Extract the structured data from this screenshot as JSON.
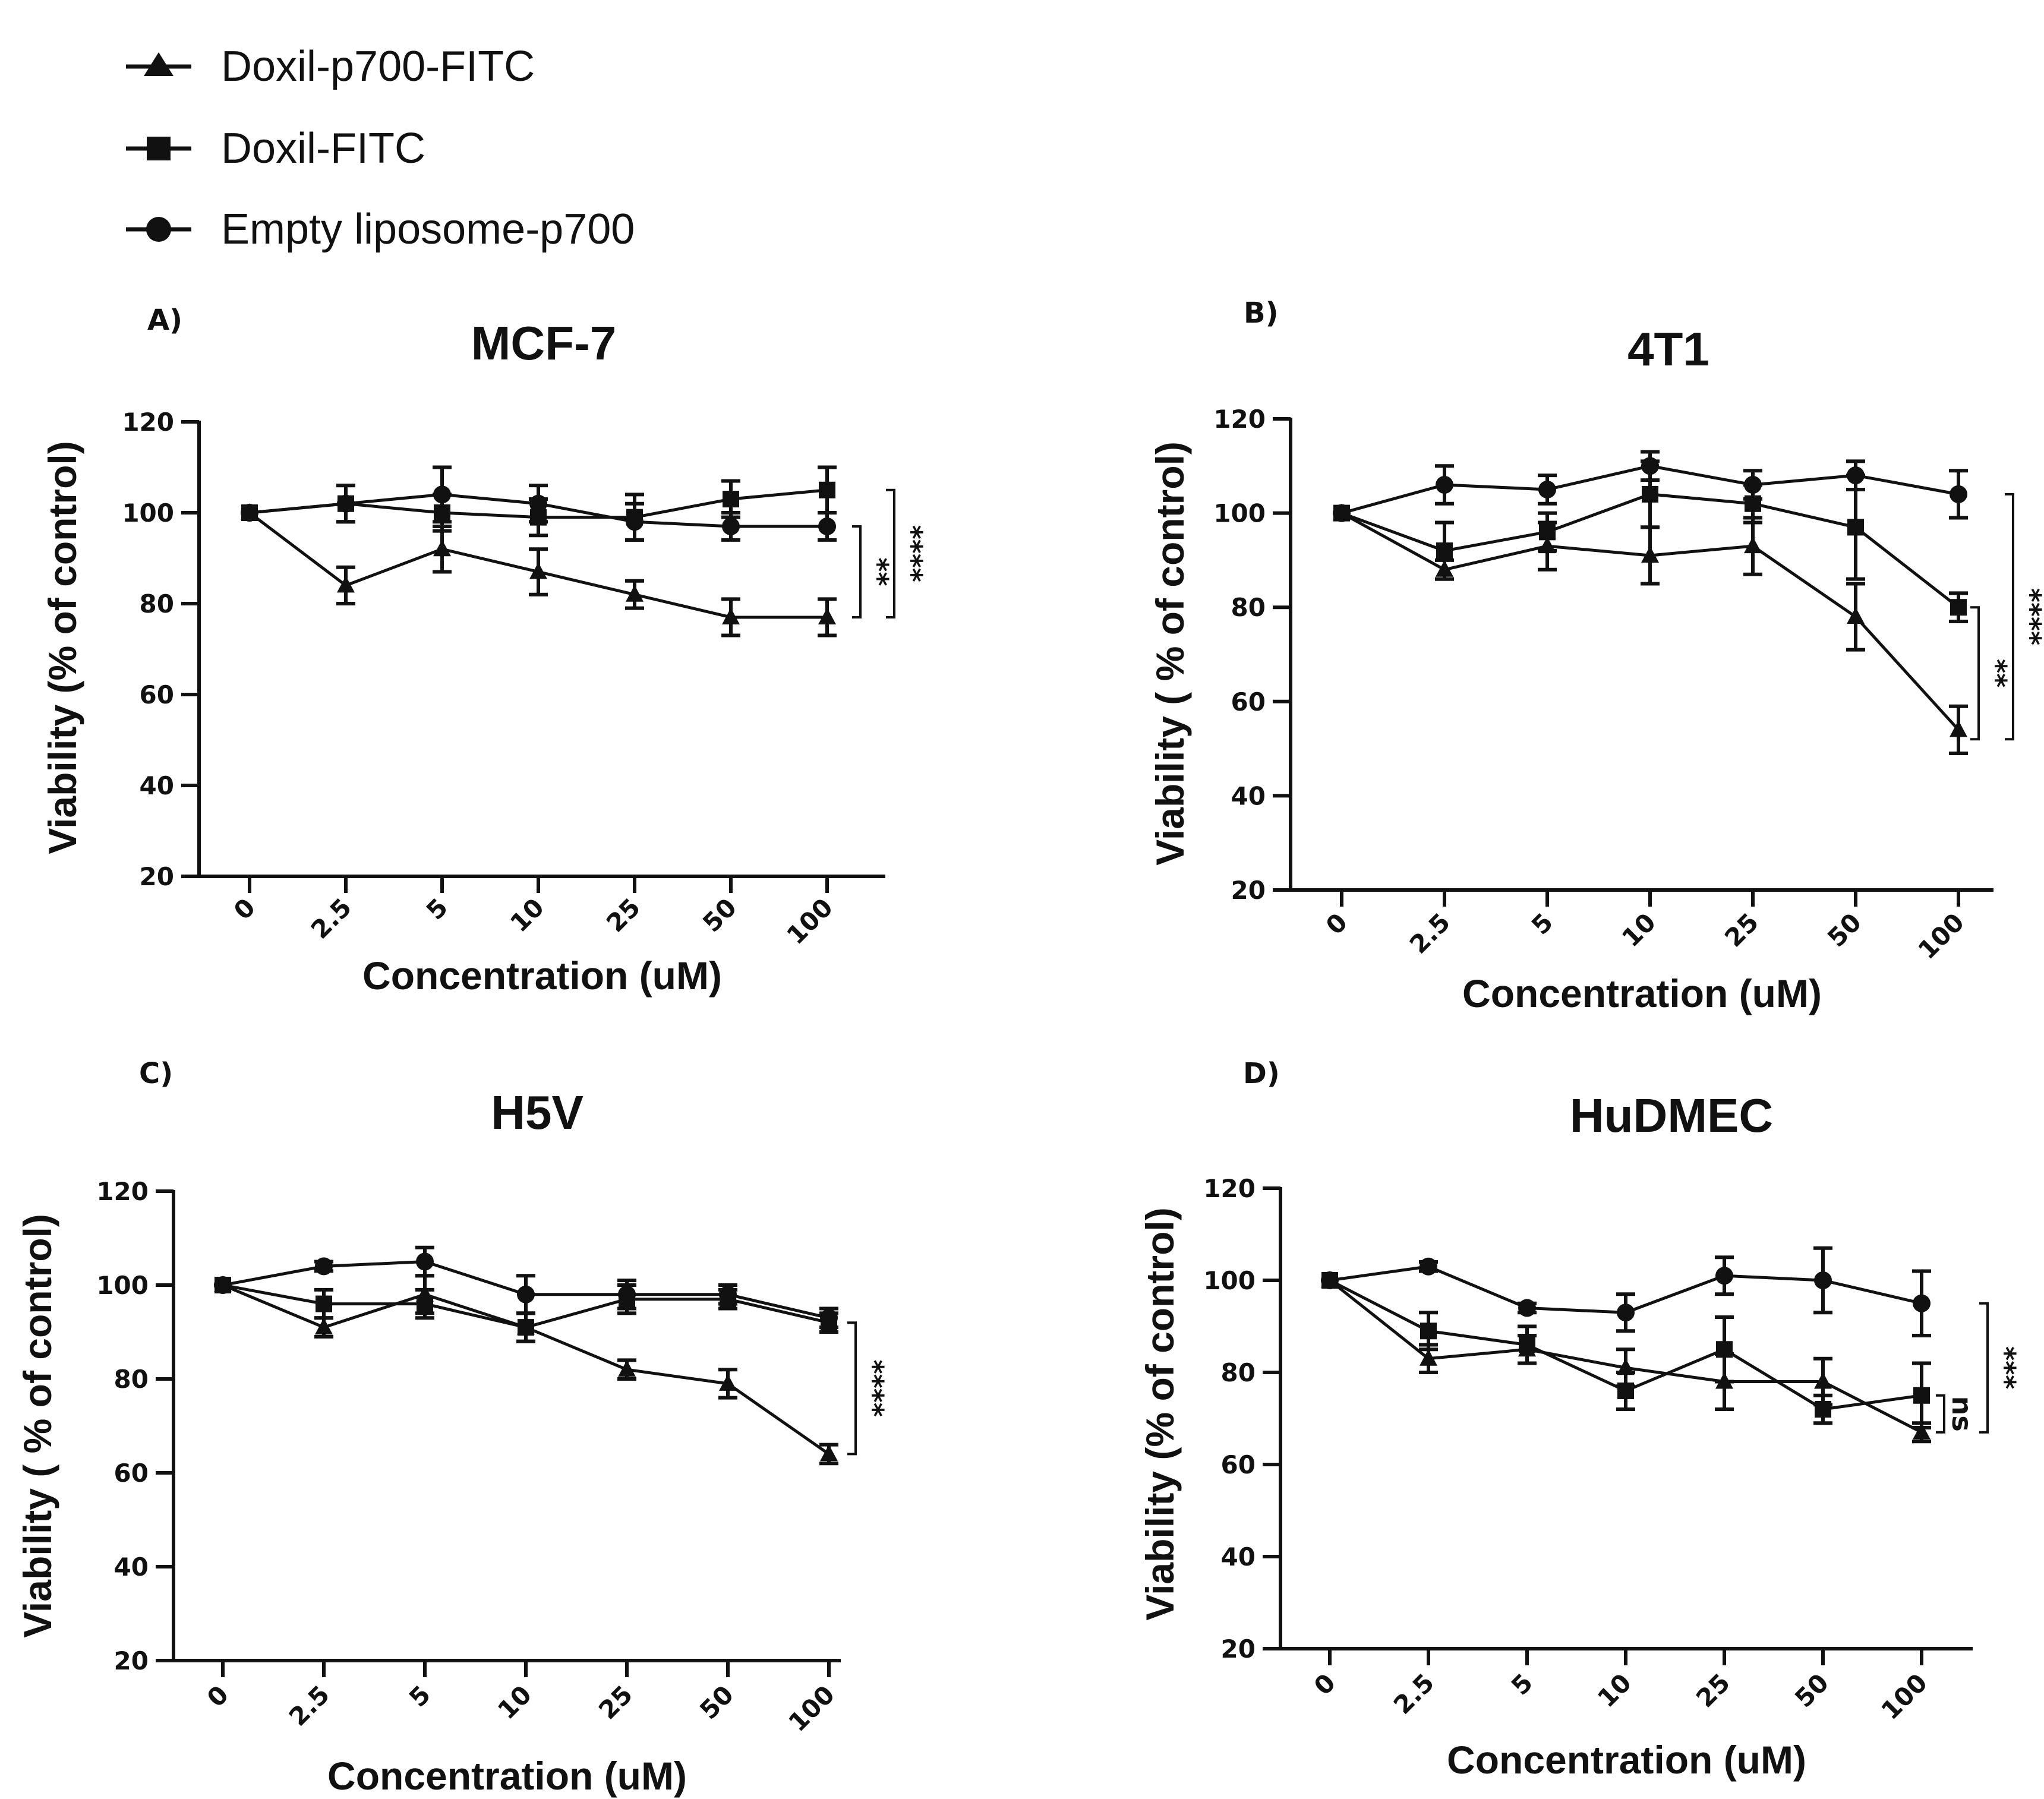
{
  "colors": {
    "ink": "#111111",
    "background": "#ffffff"
  },
  "legend": [
    {
      "label": "Doxil-p700-FITC",
      "marker": "triangle"
    },
    {
      "label": "Doxil-FITC",
      "marker": "square"
    },
    {
      "label": "Empty liposome-p700",
      "marker": "circle"
    }
  ],
  "chart_data": [
    {
      "type": "line",
      "panel_label": "A)",
      "title": "MCF-7",
      "xlabel": "Concentration (uM)",
      "ylabel": "Viability (% of control)",
      "categories": [
        "0",
        "2.5",
        "5",
        "10",
        "25",
        "50",
        "100"
      ],
      "ylim": [
        20,
        120
      ],
      "yticks": [
        20,
        40,
        60,
        80,
        100,
        120
      ],
      "series": [
        {
          "name": "Doxil-p700-FITC",
          "marker": "triangle",
          "values": [
            100,
            84,
            92,
            87,
            82,
            77,
            77
          ],
          "errors": [
            0,
            4,
            5,
            5,
            3,
            4,
            4
          ]
        },
        {
          "name": "Doxil-FITC",
          "marker": "square",
          "values": [
            100,
            102,
            100,
            99,
            99,
            103,
            105
          ],
          "errors": [
            0,
            4,
            4,
            4,
            5,
            4,
            5
          ]
        },
        {
          "name": "Empty liposome-p700",
          "marker": "circle",
          "values": [
            100,
            102,
            104,
            102,
            98,
            97,
            97
          ],
          "errors": [
            0,
            4,
            6,
            4,
            4,
            3,
            3
          ]
        }
      ],
      "significance": [
        {
          "label": "**",
          "from": 97,
          "to": 77
        },
        {
          "label": "****",
          "from": 105,
          "to": 77
        }
      ]
    },
    {
      "type": "line",
      "panel_label": "B)",
      "title": "4T1",
      "xlabel": "Concentration (uM)",
      "ylabel": "Viability ( % of control)",
      "categories": [
        "0",
        "2.5",
        "5",
        "10",
        "25",
        "50",
        "100"
      ],
      "ylim": [
        20,
        120
      ],
      "yticks": [
        20,
        40,
        60,
        80,
        100,
        120
      ],
      "series": [
        {
          "name": "Doxil-p700-FITC",
          "marker": "triangle",
          "values": [
            100,
            88,
            93,
            91,
            93,
            78,
            54
          ],
          "errors": [
            0,
            2,
            5,
            6,
            6,
            7,
            5
          ]
        },
        {
          "name": "Doxil-FITC",
          "marker": "square",
          "values": [
            100,
            92,
            96,
            104,
            102,
            97,
            80
          ],
          "errors": [
            0,
            6,
            4,
            7,
            4,
            11,
            3
          ]
        },
        {
          "name": "Empty liposome-p700",
          "marker": "circle",
          "values": [
            100,
            106,
            105,
            110,
            106,
            108,
            104
          ],
          "errors": [
            0,
            4,
            3,
            3,
            3,
            3,
            5
          ]
        }
      ],
      "significance": [
        {
          "label": "**",
          "from": 80,
          "to": 52
        },
        {
          "label": "****",
          "from": 104,
          "to": 52
        }
      ]
    },
    {
      "type": "line",
      "panel_label": "C)",
      "title": "H5V",
      "xlabel": "Concentration (uM)",
      "ylabel": "Viability ( % of control)",
      "categories": [
        "0",
        "2.5",
        "5",
        "10",
        "25",
        "50",
        "100"
      ],
      "ylim": [
        20,
        120
      ],
      "yticks": [
        20,
        40,
        60,
        80,
        100,
        120
      ],
      "series": [
        {
          "name": "Doxil-p700-FITC",
          "marker": "triangle",
          "values": [
            100,
            91,
            98,
            91,
            82,
            79,
            64
          ],
          "errors": [
            0,
            2,
            4,
            3,
            2,
            3,
            2
          ]
        },
        {
          "name": "Doxil-FITC",
          "marker": "square",
          "values": [
            100,
            96,
            96,
            91,
            97,
            97,
            92
          ],
          "errors": [
            0,
            3,
            3,
            3,
            3,
            2,
            2
          ]
        },
        {
          "name": "Empty liposome-p700",
          "marker": "circle",
          "values": [
            100,
            104,
            105,
            98,
            98,
            98,
            93
          ],
          "errors": [
            0,
            1,
            3,
            4,
            3,
            2,
            2
          ]
        }
      ],
      "significance": [
        {
          "label": "****",
          "from": 92,
          "to": 64
        }
      ]
    },
    {
      "type": "line",
      "panel_label": "D)",
      "title": "HuDMEC",
      "xlabel": "Concentration (uM)",
      "ylabel": "Viability (% of control)",
      "categories": [
        "0",
        "2.5",
        "5",
        "10",
        "25",
        "50",
        "100"
      ],
      "ylim": [
        20,
        120
      ],
      "yticks": [
        20,
        40,
        60,
        80,
        100,
        120
      ],
      "series": [
        {
          "name": "Doxil-p700-FITC",
          "marker": "triangle",
          "values": [
            100,
            83,
            85,
            81,
            78,
            78,
            67
          ],
          "errors": [
            0,
            3,
            3,
            4,
            6,
            5,
            2
          ]
        },
        {
          "name": "Doxil-FITC",
          "marker": "square",
          "values": [
            100,
            89,
            86,
            76,
            85,
            72,
            75
          ],
          "errors": [
            0,
            4,
            4,
            4,
            7,
            3,
            7
          ]
        },
        {
          "name": "Empty liposome-p700",
          "marker": "circle",
          "values": [
            100,
            103,
            94,
            93,
            101,
            100,
            95
          ],
          "errors": [
            0,
            1,
            1,
            4,
            4,
            7,
            7
          ]
        }
      ],
      "significance": [
        {
          "label": "ns",
          "from": 75,
          "to": 67
        },
        {
          "label": "***",
          "from": 95,
          "to": 67
        }
      ]
    }
  ]
}
